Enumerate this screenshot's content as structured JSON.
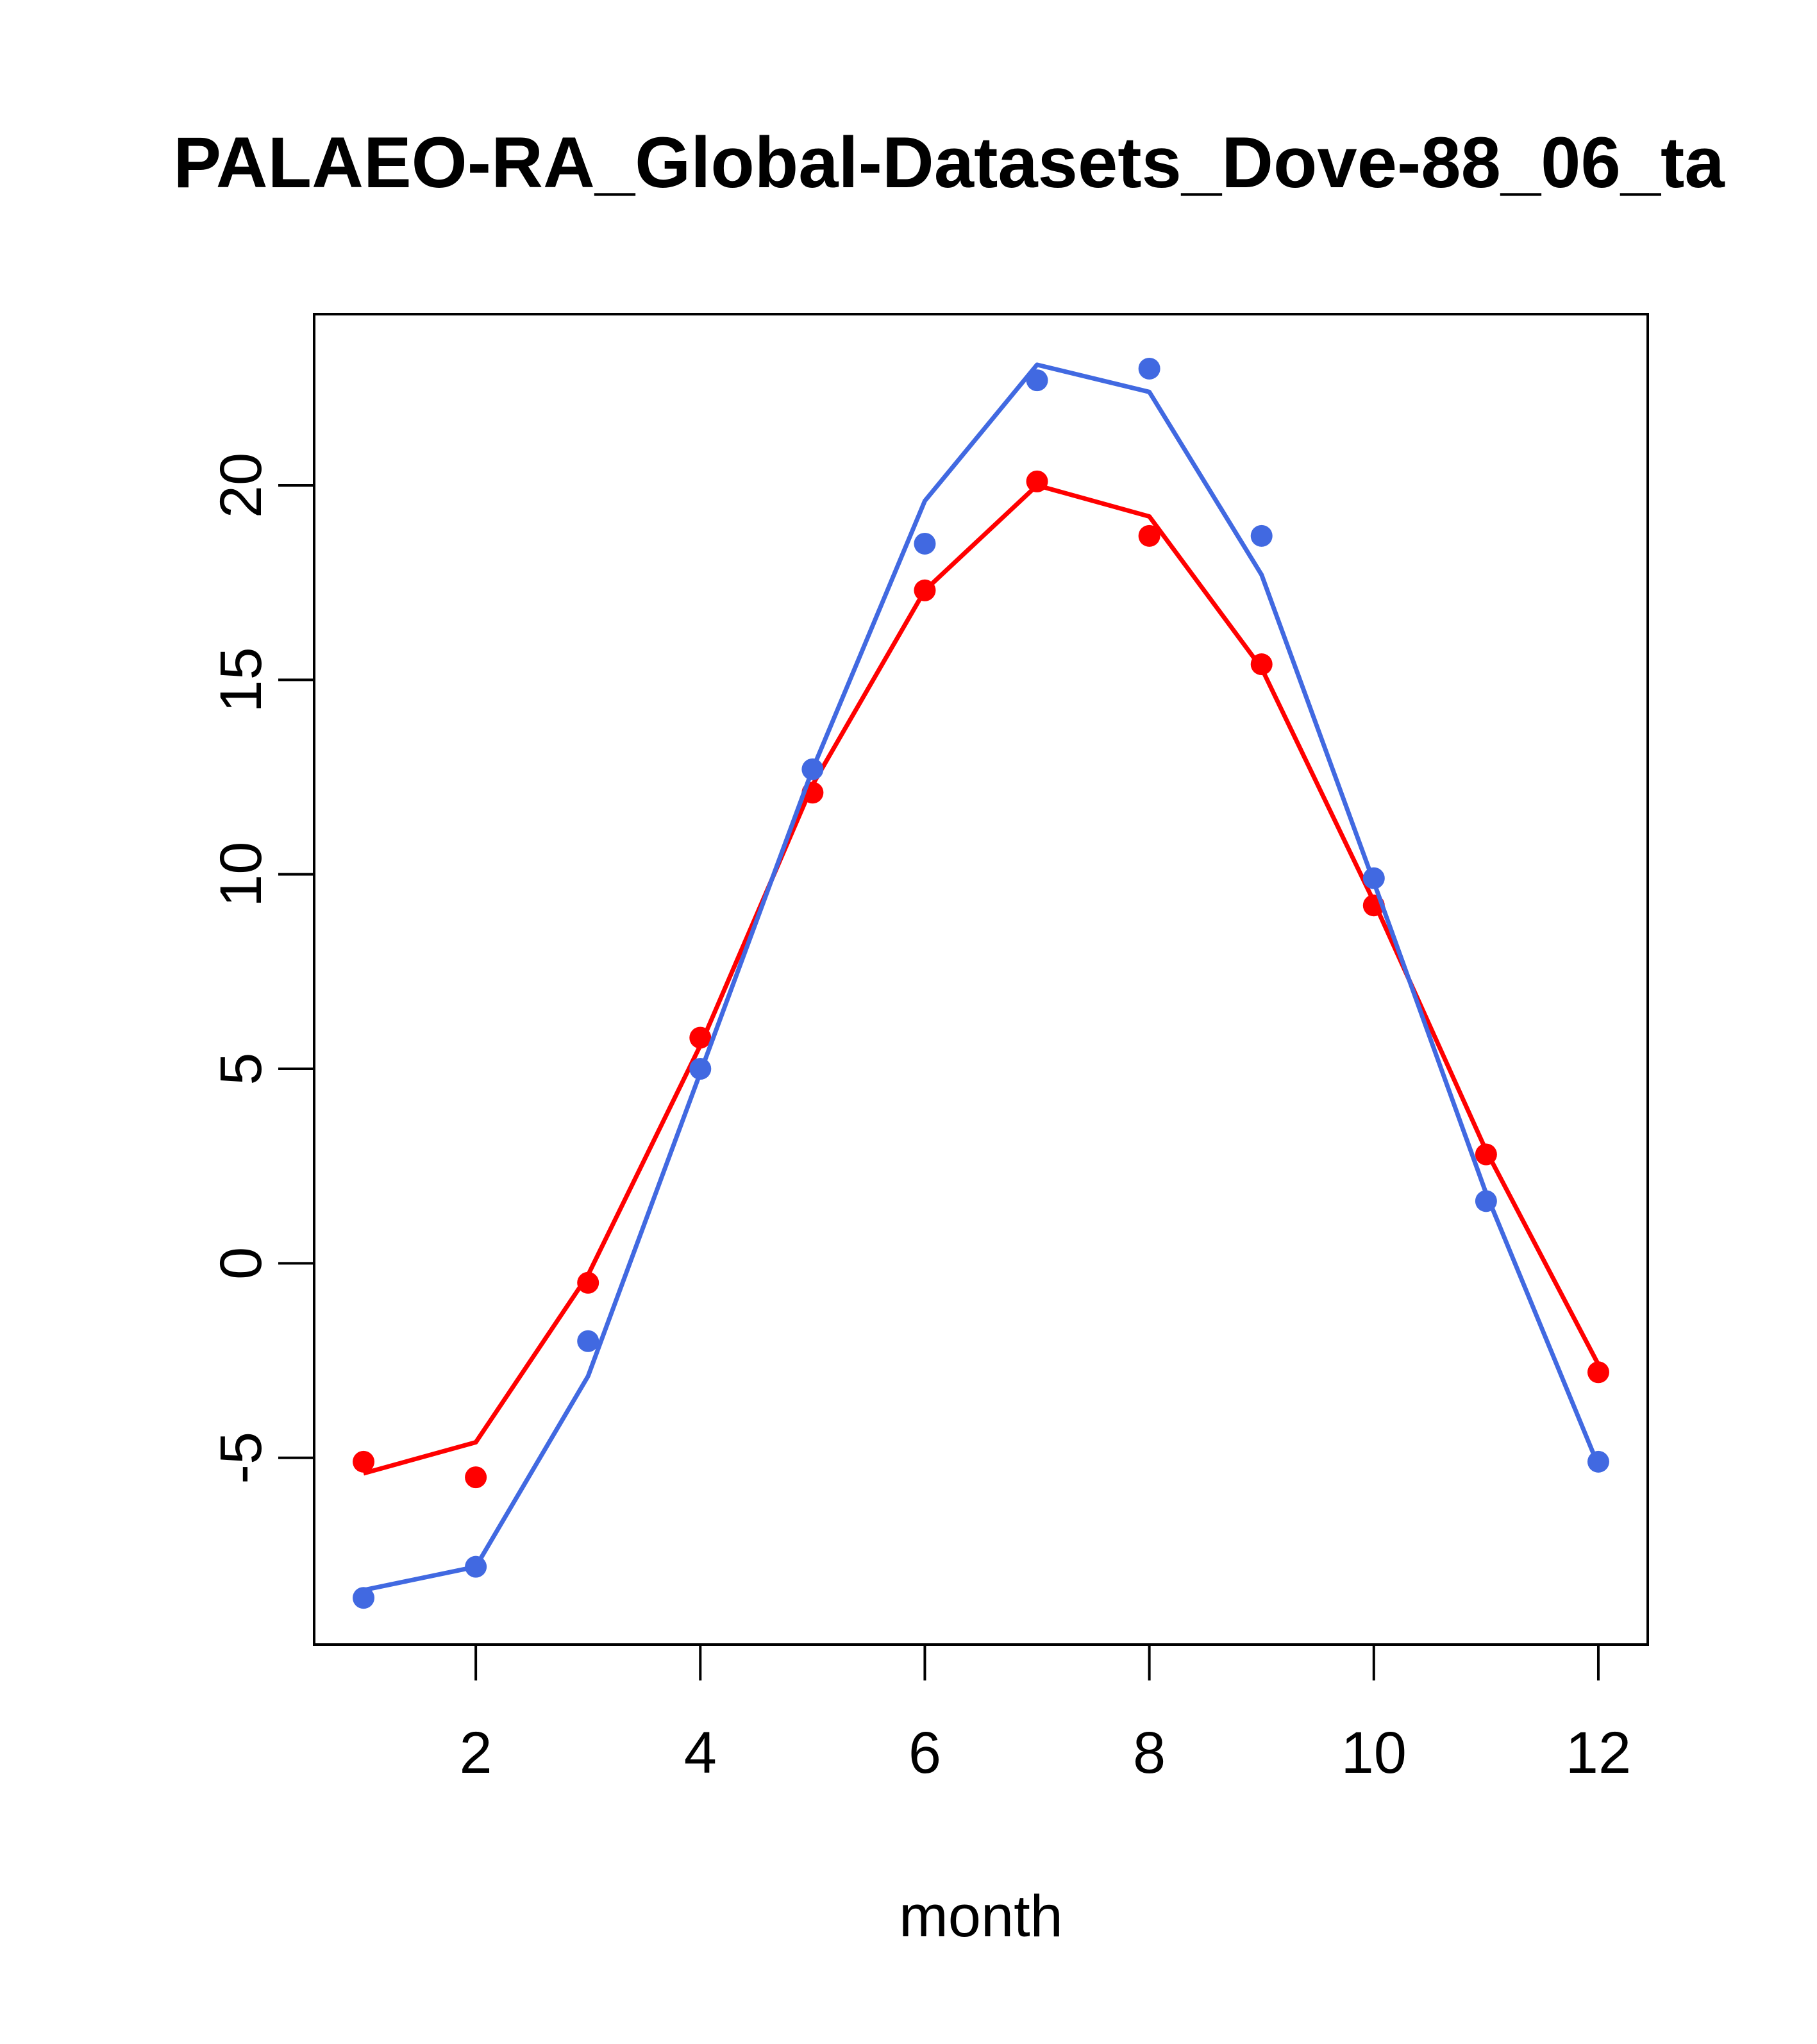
{
  "chart_data": {
    "type": "line",
    "title": "PALAEO-RA_Global-Datasets_Dove-88_06_ta",
    "xlabel": "month",
    "ylabel": "",
    "xlim": [
      0.56,
      12.44
    ],
    "ylim": [
      -9.8,
      24.4
    ],
    "xticks": [
      2,
      4,
      6,
      8,
      10,
      12
    ],
    "yticks": [
      -5,
      0,
      5,
      10,
      15,
      20
    ],
    "grid": false,
    "series": [
      {
        "color": "#FF0000",
        "line_x": [
          1,
          2,
          3,
          4,
          5,
          6,
          7,
          8,
          9,
          10,
          11,
          12
        ],
        "line_y": [
          -5.4,
          -4.6,
          -0.3,
          5.6,
          12.3,
          17.3,
          20.0,
          19.2,
          15.3,
          9.3,
          2.9,
          -2.6
        ],
        "points_x": [
          1,
          2,
          3,
          4,
          5,
          6,
          7,
          8,
          9,
          10,
          11,
          12
        ],
        "points_y": [
          -5.1,
          -5.5,
          -0.5,
          5.8,
          12.1,
          17.3,
          20.1,
          18.7,
          15.4,
          9.2,
          2.8,
          -2.8
        ]
      },
      {
        "color": "#4169E1",
        "line_x": [
          1,
          2,
          3,
          4,
          5,
          6,
          7,
          8,
          9,
          10,
          11,
          12
        ],
        "line_y": [
          -8.4,
          -7.8,
          -2.9,
          4.9,
          12.7,
          19.6,
          23.1,
          22.4,
          17.7,
          9.8,
          1.8,
          -5.2
        ],
        "points_x": [
          1,
          2,
          3,
          4,
          5,
          6,
          7,
          8,
          9,
          10,
          11,
          12
        ],
        "points_y": [
          -8.6,
          -7.8,
          -2.0,
          5.0,
          12.7,
          18.5,
          22.7,
          23.0,
          18.7,
          9.9,
          1.6,
          -5.1
        ]
      }
    ]
  }
}
